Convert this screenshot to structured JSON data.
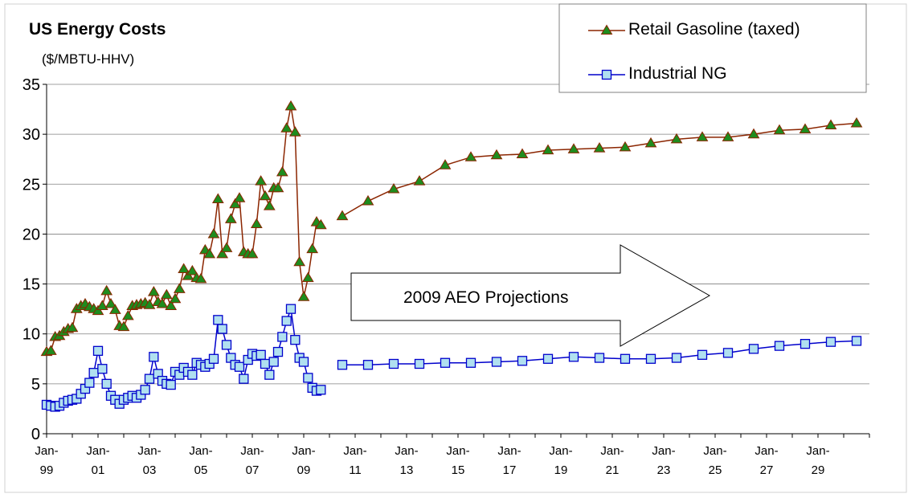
{
  "chart_data": {
    "type": "line",
    "title": "US Energy Costs",
    "subtitle": "($/MBTU-HHV)",
    "xlabel": "",
    "ylabel": "",
    "ylim": [
      0,
      35
    ],
    "y_ticks": [
      0,
      5,
      10,
      15,
      20,
      25,
      30,
      35
    ],
    "xlim": [
      "1999-01",
      "2031-01"
    ],
    "x_tick_labels": [
      {
        "x": "1999-01",
        "line1": "Jan-",
        "line2": "99"
      },
      {
        "x": "2001-01",
        "line1": "Jan-",
        "line2": "01"
      },
      {
        "x": "2003-01",
        "line1": "Jan-",
        "line2": "03"
      },
      {
        "x": "2005-01",
        "line1": "Jan-",
        "line2": "05"
      },
      {
        "x": "2007-01",
        "line1": "Jan-",
        "line2": "07"
      },
      {
        "x": "2009-01",
        "line1": "Jan-",
        "line2": "09"
      },
      {
        "x": "2011-01",
        "line1": "Jan-",
        "line2": "11"
      },
      {
        "x": "2013-01",
        "line1": "Jan-",
        "line2": "13"
      },
      {
        "x": "2015-01",
        "line1": "Jan-",
        "line2": "15"
      },
      {
        "x": "2017-01",
        "line1": "Jan-",
        "line2": "17"
      },
      {
        "x": "2019-01",
        "line1": "Jan-",
        "line2": "19"
      },
      {
        "x": "2021-01",
        "line1": "Jan-",
        "line2": "21"
      },
      {
        "x": "2023-01",
        "line1": "Jan-",
        "line2": "23"
      },
      {
        "x": "2025-01",
        "line1": "Jan-",
        "line2": "25"
      },
      {
        "x": "2027-01",
        "line1": "Jan-",
        "line2": "27"
      },
      {
        "x": "2029-01",
        "line1": "Jan-",
        "line2": "29"
      }
    ],
    "grid": "horizontal",
    "legend_position": "top-right",
    "annotation": "2009 AEO Projections",
    "series": [
      {
        "name": "Retail Gasoline (taxed)",
        "color": "#8b2500",
        "marker": "triangle",
        "marker_fill": "#1e8c1e",
        "historical": [
          [
            "1999-01",
            8.2
          ],
          [
            "1999-03",
            8.3
          ],
          [
            "1999-05",
            9.7
          ],
          [
            "1999-07",
            9.8
          ],
          [
            "1999-09",
            10.2
          ],
          [
            "1999-11",
            10.5
          ],
          [
            "2000-01",
            10.6
          ],
          [
            "2000-03",
            12.5
          ],
          [
            "2000-05",
            12.8
          ],
          [
            "2000-07",
            13.0
          ],
          [
            "2000-09",
            12.7
          ],
          [
            "2000-11",
            12.5
          ],
          [
            "2001-01",
            12.3
          ],
          [
            "2001-03",
            12.8
          ],
          [
            "2001-05",
            14.3
          ],
          [
            "2001-07",
            13.0
          ],
          [
            "2001-09",
            12.4
          ],
          [
            "2001-11",
            10.8
          ],
          [
            "2002-01",
            10.7
          ],
          [
            "2002-03",
            11.8
          ],
          [
            "2002-05",
            12.8
          ],
          [
            "2002-07",
            12.9
          ],
          [
            "2002-09",
            13.0
          ],
          [
            "2002-11",
            13.1
          ],
          [
            "2003-01",
            12.9
          ],
          [
            "2003-03",
            14.2
          ],
          [
            "2003-05",
            13.2
          ],
          [
            "2003-07",
            13.0
          ],
          [
            "2003-09",
            13.9
          ],
          [
            "2003-11",
            12.8
          ],
          [
            "2004-01",
            13.5
          ],
          [
            "2004-03",
            14.5
          ],
          [
            "2004-05",
            16.5
          ],
          [
            "2004-07",
            15.8
          ],
          [
            "2004-09",
            16.3
          ],
          [
            "2004-11",
            15.6
          ],
          [
            "2005-01",
            15.5
          ],
          [
            "2005-03",
            18.4
          ],
          [
            "2005-05",
            18.0
          ],
          [
            "2005-07",
            20.0
          ],
          [
            "2005-09",
            23.5
          ],
          [
            "2005-11",
            18.0
          ],
          [
            "2006-01",
            18.6
          ],
          [
            "2006-03",
            21.5
          ],
          [
            "2006-05",
            23.0
          ],
          [
            "2006-07",
            23.6
          ],
          [
            "2006-09",
            18.2
          ],
          [
            "2006-11",
            18.0
          ],
          [
            "2007-01",
            18.0
          ],
          [
            "2007-03",
            21.0
          ],
          [
            "2007-05",
            25.3
          ],
          [
            "2007-07",
            23.8
          ],
          [
            "2007-09",
            22.8
          ],
          [
            "2007-11",
            24.6
          ],
          [
            "2008-01",
            24.6
          ],
          [
            "2008-03",
            26.2
          ],
          [
            "2008-05",
            30.6
          ],
          [
            "2008-07",
            32.8
          ],
          [
            "2008-09",
            30.2
          ],
          [
            "2008-11",
            17.2
          ],
          [
            "2009-01",
            13.7
          ],
          [
            "2009-03",
            15.6
          ],
          [
            "2009-05",
            18.5
          ],
          [
            "2009-07",
            21.2
          ],
          [
            "2009-09",
            20.9
          ]
        ],
        "projection": [
          [
            "2010-07",
            21.8
          ],
          [
            "2011-07",
            23.3
          ],
          [
            "2012-07",
            24.5
          ],
          [
            "2013-07",
            25.3
          ],
          [
            "2014-07",
            26.9
          ],
          [
            "2015-07",
            27.7
          ],
          [
            "2016-07",
            27.9
          ],
          [
            "2017-07",
            28.0
          ],
          [
            "2018-07",
            28.4
          ],
          [
            "2019-07",
            28.5
          ],
          [
            "2020-07",
            28.6
          ],
          [
            "2021-07",
            28.7
          ],
          [
            "2022-07",
            29.1
          ],
          [
            "2023-07",
            29.5
          ],
          [
            "2024-07",
            29.7
          ],
          [
            "2025-07",
            29.7
          ],
          [
            "2026-07",
            30.0
          ],
          [
            "2027-07",
            30.4
          ],
          [
            "2028-07",
            30.5
          ],
          [
            "2029-07",
            30.9
          ],
          [
            "2030-07",
            31.1
          ]
        ]
      },
      {
        "name": "Industrial NG",
        "color": "#0000cc",
        "marker": "square",
        "marker_fill": "#b0e0f0",
        "historical": [
          [
            "1999-01",
            2.9
          ],
          [
            "1999-03",
            2.8
          ],
          [
            "1999-05",
            2.7
          ],
          [
            "1999-07",
            2.8
          ],
          [
            "1999-09",
            3.1
          ],
          [
            "1999-11",
            3.3
          ],
          [
            "2000-01",
            3.4
          ],
          [
            "2000-03",
            3.5
          ],
          [
            "2000-05",
            4.0
          ],
          [
            "2000-07",
            4.5
          ],
          [
            "2000-09",
            5.1
          ],
          [
            "2000-11",
            6.1
          ],
          [
            "2001-01",
            8.3
          ],
          [
            "2001-03",
            6.5
          ],
          [
            "2001-05",
            5.0
          ],
          [
            "2001-07",
            3.8
          ],
          [
            "2001-09",
            3.4
          ],
          [
            "2001-11",
            3.0
          ],
          [
            "2002-01",
            3.4
          ],
          [
            "2002-03",
            3.6
          ],
          [
            "2002-05",
            3.8
          ],
          [
            "2002-07",
            3.6
          ],
          [
            "2002-09",
            3.9
          ],
          [
            "2002-11",
            4.4
          ],
          [
            "2003-01",
            5.5
          ],
          [
            "2003-03",
            7.7
          ],
          [
            "2003-05",
            6.0
          ],
          [
            "2003-07",
            5.3
          ],
          [
            "2003-09",
            5.0
          ],
          [
            "2003-11",
            4.9
          ],
          [
            "2004-01",
            6.2
          ],
          [
            "2004-03",
            5.9
          ],
          [
            "2004-05",
            6.6
          ],
          [
            "2004-07",
            6.2
          ],
          [
            "2004-09",
            5.9
          ],
          [
            "2004-11",
            7.1
          ],
          [
            "2005-01",
            6.9
          ],
          [
            "2005-03",
            6.7
          ],
          [
            "2005-05",
            7.0
          ],
          [
            "2005-07",
            7.5
          ],
          [
            "2005-09",
            11.4
          ],
          [
            "2005-11",
            10.5
          ],
          [
            "2006-01",
            8.9
          ],
          [
            "2006-03",
            7.6
          ],
          [
            "2006-05",
            6.9
          ],
          [
            "2006-07",
            6.7
          ],
          [
            "2006-09",
            5.5
          ],
          [
            "2006-11",
            7.4
          ],
          [
            "2007-01",
            8.0
          ],
          [
            "2007-03",
            7.8
          ],
          [
            "2007-05",
            7.9
          ],
          [
            "2007-07",
            7.0
          ],
          [
            "2007-09",
            5.9
          ],
          [
            "2007-11",
            7.2
          ],
          [
            "2008-01",
            8.2
          ],
          [
            "2008-03",
            9.7
          ],
          [
            "2008-05",
            11.3
          ],
          [
            "2008-07",
            12.5
          ],
          [
            "2008-09",
            9.4
          ],
          [
            "2008-11",
            7.6
          ],
          [
            "2009-01",
            7.2
          ],
          [
            "2009-03",
            5.6
          ],
          [
            "2009-05",
            4.6
          ],
          [
            "2009-07",
            4.3
          ],
          [
            "2009-09",
            4.4
          ]
        ],
        "projection": [
          [
            "2010-07",
            6.9
          ],
          [
            "2011-07",
            6.9
          ],
          [
            "2012-07",
            7.0
          ],
          [
            "2013-07",
            7.0
          ],
          [
            "2014-07",
            7.1
          ],
          [
            "2015-07",
            7.1
          ],
          [
            "2016-07",
            7.2
          ],
          [
            "2017-07",
            7.3
          ],
          [
            "2018-07",
            7.5
          ],
          [
            "2019-07",
            7.7
          ],
          [
            "2020-07",
            7.6
          ],
          [
            "2021-07",
            7.5
          ],
          [
            "2022-07",
            7.5
          ],
          [
            "2023-07",
            7.6
          ],
          [
            "2024-07",
            7.9
          ],
          [
            "2025-07",
            8.1
          ],
          [
            "2026-07",
            8.5
          ],
          [
            "2027-07",
            8.8
          ],
          [
            "2028-07",
            9.0
          ],
          [
            "2029-07",
            9.2
          ],
          [
            "2030-07",
            9.3
          ]
        ]
      }
    ]
  }
}
